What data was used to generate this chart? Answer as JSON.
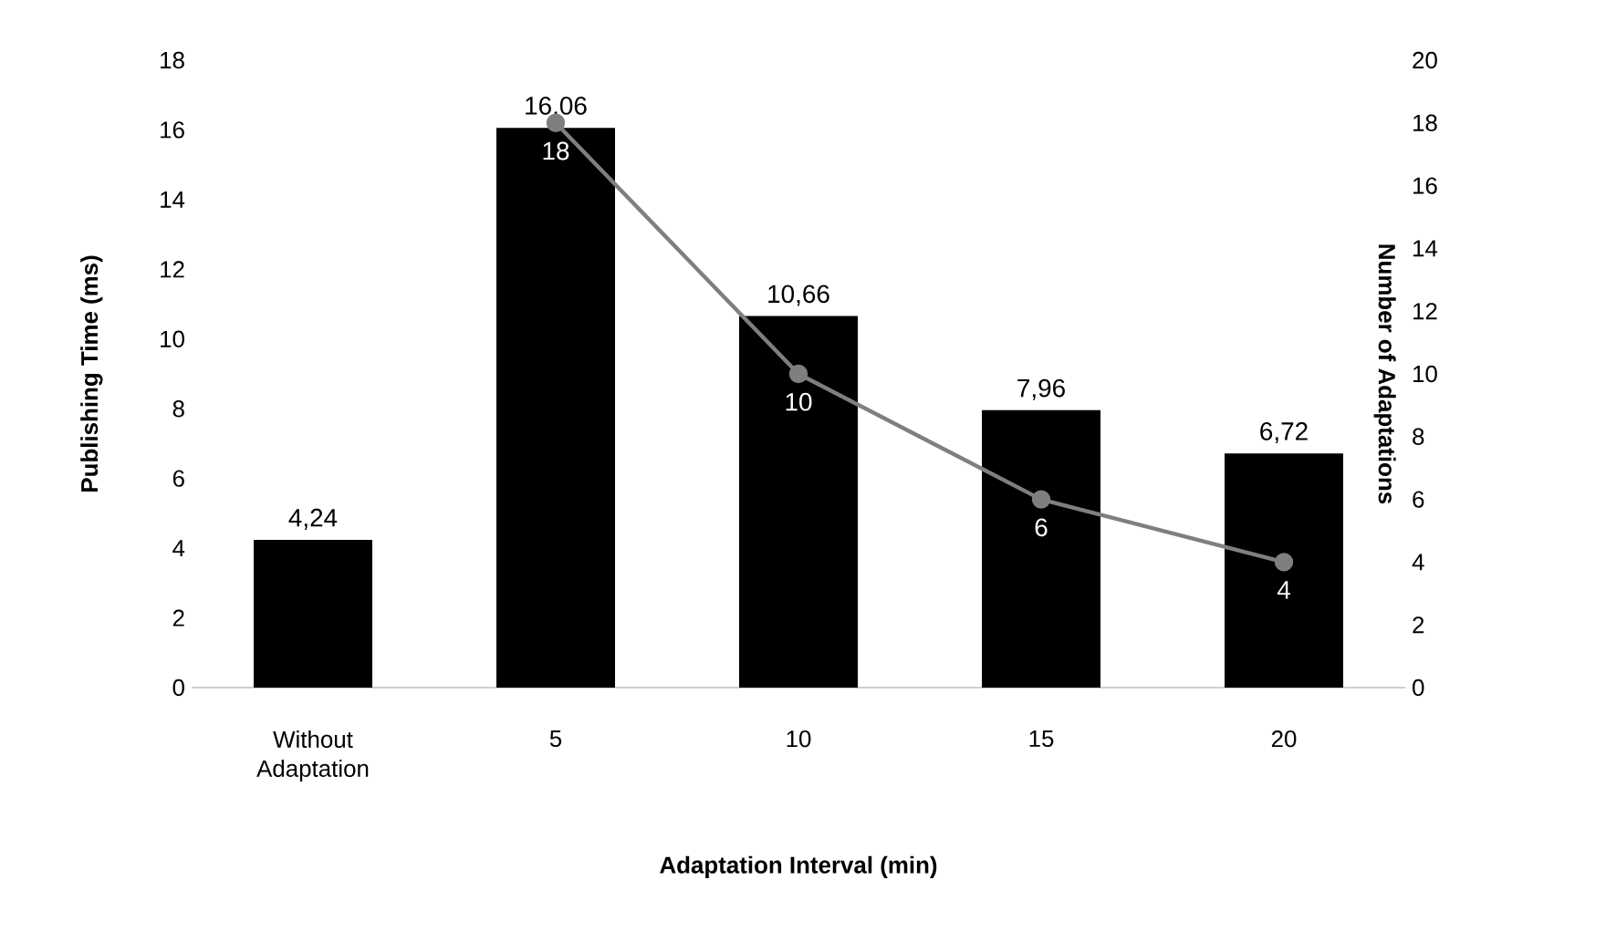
{
  "chart_data": {
    "type": "bar",
    "xlabel": "Adaptation Interval (min)",
    "ylabel": "Publishing Time (ms)",
    "y2label": "Number of Adaptations",
    "categories": [
      "Without Adaptation",
      "5",
      "10",
      "15",
      "20"
    ],
    "ylim": [
      0,
      18
    ],
    "yticks": [
      0,
      2,
      4,
      6,
      8,
      10,
      12,
      14,
      16,
      18
    ],
    "y2lim": [
      0,
      20
    ],
    "y2ticks": [
      0,
      2,
      4,
      6,
      8,
      10,
      12,
      14,
      16,
      18,
      20
    ],
    "series": [
      {
        "color": "#000000",
        "values": [
          4.24,
          16.06,
          10.66,
          7.96,
          6.72
        ],
        "value_labels": [
          "4,24",
          "16,06",
          "10,66",
          "7,96",
          "6,72"
        ]
      },
      {
        "type": "line",
        "axis": "y2",
        "color": "#7f7f7f",
        "marker": "circle",
        "values": [
          null,
          18,
          10,
          6,
          4
        ],
        "value_labels": [
          null,
          "18",
          "10",
          "6",
          "4"
        ]
      }
    ]
  }
}
